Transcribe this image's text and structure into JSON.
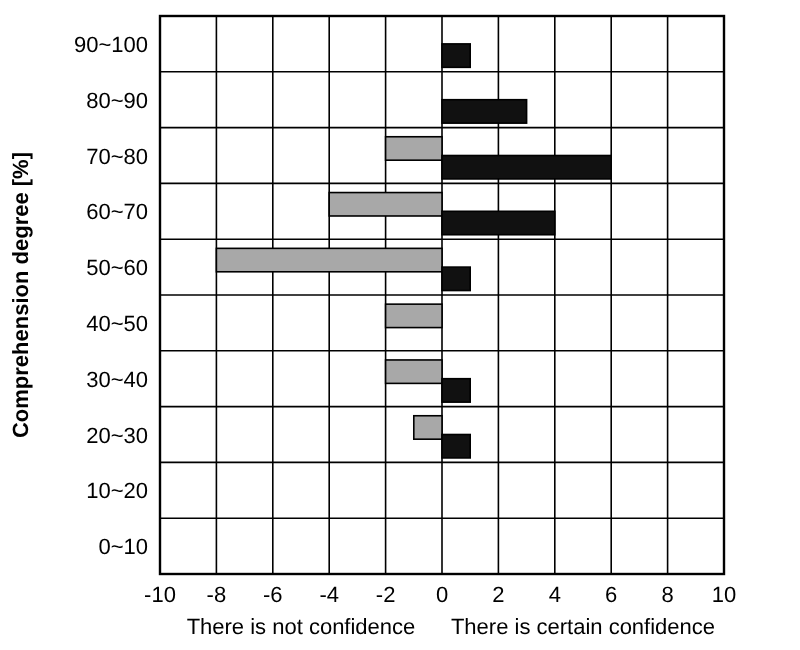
{
  "chart_data": {
    "type": "bar",
    "orientation": "horizontal",
    "ylabel": "Comprehension degree [%]",
    "categories": [
      "90~100",
      "80~90",
      "70~80",
      "60~70",
      "50~60",
      "40~50",
      "30~40",
      "20~30",
      "10~20",
      "0~10"
    ],
    "series": [
      {
        "color": "#a8a8a8",
        "values": [
          null,
          null,
          -2,
          -4,
          -8,
          -2,
          -2,
          -1,
          null,
          null
        ]
      },
      {
        "color": "#111111",
        "values": [
          1,
          3,
          6,
          4,
          1,
          null,
          1,
          1,
          null,
          null
        ]
      }
    ],
    "xlim": [
      -10,
      10
    ],
    "xticks": [
      -10,
      -8,
      -6,
      -4,
      -2,
      0,
      2,
      4,
      6,
      8,
      10
    ],
    "grid": true,
    "annotations": [
      "There is not confidence",
      "There is certain confidence"
    ]
  }
}
